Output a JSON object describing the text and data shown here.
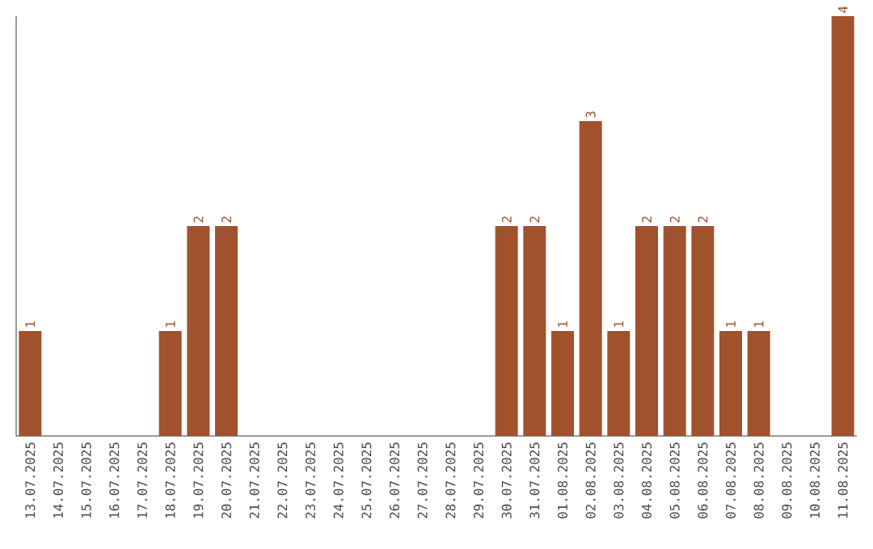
{
  "chart_data": {
    "type": "bar",
    "color": "#a0522d",
    "categories": [
      "13.07.2025",
      "14.07.2025",
      "15.07.2025",
      "16.07.2025",
      "17.07.2025",
      "18.07.2025",
      "19.07.2025",
      "20.07.2025",
      "21.07.2025",
      "22.07.2025",
      "23.07.2025",
      "24.07.2025",
      "25.07.2025",
      "26.07.2025",
      "27.07.2025",
      "28.07.2025",
      "29.07.2025",
      "30.07.2025",
      "31.07.2025",
      "01.08.2025",
      "02.08.2025",
      "03.08.2025",
      "04.08.2025",
      "05.08.2025",
      "06.08.2025",
      "07.08.2025",
      "08.08.2025",
      "09.08.2025",
      "10.08.2025",
      "11.08.2025"
    ],
    "values": [
      1,
      0,
      0,
      0,
      0,
      1,
      2,
      2,
      0,
      0,
      0,
      0,
      0,
      0,
      0,
      0,
      0,
      2,
      2,
      1,
      3,
      1,
      2,
      2,
      2,
      1,
      1,
      0,
      0,
      4
    ],
    "value_labels": [
      "1",
      null,
      null,
      null,
      null,
      "1",
      "2",
      "2",
      null,
      null,
      null,
      null,
      null,
      null,
      null,
      null,
      null,
      "2",
      "2",
      "1",
      "3",
      "1",
      "2",
      "2",
      "2",
      "1",
      "1",
      null,
      null,
      "4"
    ]
  }
}
